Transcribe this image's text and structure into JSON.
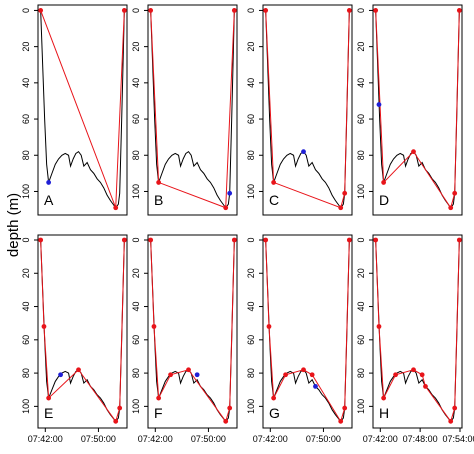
{
  "y_label": "depth (m)",
  "chart_data": [
    {
      "type": "line",
      "label": "A",
      "xlim": [
        40.9,
        54.3
      ],
      "ylim": [
        113,
        -3
      ],
      "yticks": [
        0,
        20,
        40,
        60,
        80,
        100
      ],
      "series": [
        {
          "color": "#000000",
          "x": [
            41.3,
            41.6,
            41.9,
            42.2,
            42.5,
            43.0,
            43.5,
            44.0,
            44.5,
            45.0,
            45.5,
            45.8,
            46.2,
            46.6,
            47.0,
            47.4,
            47.8,
            48.3,
            48.8,
            49.3,
            49.8,
            50.3,
            50.8,
            51.3,
            51.8,
            52.2,
            52.6,
            53.0,
            53.2,
            53.5,
            53.9
          ],
          "values": [
            0,
            30,
            60,
            85,
            95,
            90,
            85,
            82,
            80,
            79,
            80,
            86,
            82,
            79,
            78,
            80,
            86,
            84,
            88,
            90,
            93,
            95,
            98,
            102,
            105,
            107,
            109,
            107,
            101,
            60,
            0
          ]
        },
        {
          "color": "#e8141a",
          "x": [
            41.3,
            52.6,
            53.9
          ],
          "values": [
            0,
            109,
            0
          ]
        },
        {
          "color": "#1f1fd6",
          "x": [
            42.5
          ],
          "values": [
            95
          ]
        }
      ]
    },
    {
      "type": "line",
      "label": "B",
      "xlim": [
        40.9,
        54.3
      ],
      "ylim": [
        113,
        -3
      ],
      "yticks": [
        0,
        20,
        40,
        60,
        80,
        100
      ],
      "series": [
        {
          "color": "#000000",
          "x": [
            41.3,
            41.6,
            41.9,
            42.2,
            42.5,
            43.0,
            43.5,
            44.0,
            44.5,
            45.0,
            45.5,
            45.8,
            46.2,
            46.6,
            47.0,
            47.4,
            47.8,
            48.3,
            48.8,
            49.3,
            49.8,
            50.3,
            50.8,
            51.3,
            51.8,
            52.2,
            52.6,
            53.0,
            53.2,
            53.5,
            53.9
          ],
          "values": [
            0,
            30,
            60,
            85,
            95,
            90,
            85,
            82,
            80,
            79,
            80,
            86,
            82,
            79,
            78,
            80,
            86,
            84,
            88,
            90,
            93,
            95,
            98,
            102,
            105,
            107,
            109,
            107,
            101,
            60,
            0
          ]
        },
        {
          "color": "#e8141a",
          "x": [
            41.3,
            42.5,
            52.6,
            53.9
          ],
          "values": [
            0,
            95,
            109,
            0
          ]
        },
        {
          "color": "#1f1fd6",
          "x": [
            53.2
          ],
          "values": [
            101
          ]
        }
      ]
    },
    {
      "type": "line",
      "label": "C",
      "xlim": [
        40.9,
        54.3
      ],
      "ylim": [
        113,
        -3
      ],
      "yticks": [
        0,
        20,
        40,
        60,
        80,
        100
      ],
      "series": [
        {
          "color": "#000000",
          "x": [
            41.3,
            41.6,
            41.9,
            42.2,
            42.5,
            43.0,
            43.5,
            44.0,
            44.5,
            45.0,
            45.5,
            45.8,
            46.2,
            46.6,
            47.0,
            47.4,
            47.8,
            48.3,
            48.8,
            49.3,
            49.8,
            50.3,
            50.8,
            51.3,
            51.8,
            52.2,
            52.6,
            53.0,
            53.2,
            53.5,
            53.9
          ],
          "values": [
            0,
            30,
            60,
            85,
            95,
            90,
            85,
            82,
            80,
            79,
            80,
            86,
            82,
            79,
            78,
            80,
            86,
            84,
            88,
            90,
            93,
            95,
            98,
            102,
            105,
            107,
            109,
            107,
            101,
            60,
            0
          ]
        },
        {
          "color": "#e8141a",
          "x": [
            41.3,
            42.5,
            52.6,
            53.2,
            53.9
          ],
          "values": [
            0,
            95,
            109,
            101,
            0
          ]
        },
        {
          "color": "#1f1fd6",
          "x": [
            47.0
          ],
          "values": [
            78
          ]
        }
      ]
    },
    {
      "type": "line",
      "label": "D",
      "xlim": [
        40.9,
        54.3
      ],
      "ylim": [
        113,
        -3
      ],
      "yticks": [
        0,
        20,
        40,
        60,
        80,
        100
      ],
      "series": [
        {
          "color": "#000000",
          "x": [
            41.3,
            41.6,
            41.9,
            42.2,
            42.5,
            43.0,
            43.5,
            44.0,
            44.5,
            45.0,
            45.5,
            45.8,
            46.2,
            46.6,
            47.0,
            47.4,
            47.8,
            48.3,
            48.8,
            49.3,
            49.8,
            50.3,
            50.8,
            51.3,
            51.8,
            52.2,
            52.6,
            53.0,
            53.2,
            53.5,
            53.9
          ],
          "values": [
            0,
            30,
            60,
            85,
            95,
            90,
            85,
            82,
            80,
            79,
            80,
            86,
            82,
            79,
            78,
            80,
            86,
            84,
            88,
            90,
            93,
            95,
            98,
            102,
            105,
            107,
            109,
            107,
            101,
            60,
            0
          ]
        },
        {
          "color": "#e8141a",
          "x": [
            41.3,
            42.5,
            47.0,
            52.6,
            53.2,
            53.9
          ],
          "values": [
            0,
            95,
            78,
            109,
            101,
            0
          ]
        },
        {
          "color": "#1f1fd6",
          "x": [
            41.8
          ],
          "values": [
            52
          ]
        }
      ]
    },
    {
      "type": "line",
      "label": "E",
      "xlim": [
        40.9,
        54.3
      ],
      "ylim": [
        113,
        -3
      ],
      "yticks": [
        0,
        20,
        40,
        60,
        80,
        100
      ],
      "xticks": [
        {
          "value": 42,
          "label": "07:42:00"
        },
        {
          "value": 50,
          "label": "07:50:00"
        }
      ],
      "series": [
        {
          "color": "#000000",
          "x": [
            41.3,
            41.6,
            41.9,
            42.2,
            42.5,
            43.0,
            43.5,
            44.0,
            44.5,
            45.0,
            45.5,
            45.8,
            46.2,
            46.6,
            47.0,
            47.4,
            47.8,
            48.3,
            48.8,
            49.3,
            49.8,
            50.3,
            50.8,
            51.3,
            51.8,
            52.2,
            52.6,
            53.0,
            53.2,
            53.5,
            53.9
          ],
          "values": [
            0,
            30,
            60,
            85,
            95,
            90,
            85,
            82,
            80,
            79,
            80,
            86,
            82,
            79,
            78,
            80,
            86,
            84,
            88,
            90,
            93,
            95,
            98,
            102,
            105,
            107,
            109,
            107,
            101,
            60,
            0
          ]
        },
        {
          "color": "#e8141a",
          "x": [
            41.3,
            41.8,
            42.5,
            47.0,
            52.6,
            53.2,
            53.9
          ],
          "values": [
            0,
            52,
            95,
            78,
            109,
            101,
            0
          ]
        },
        {
          "color": "#1f1fd6",
          "x": [
            44.3
          ],
          "values": [
            81
          ]
        }
      ]
    },
    {
      "type": "line",
      "label": "F",
      "xlim": [
        40.9,
        54.3
      ],
      "ylim": [
        113,
        -3
      ],
      "yticks": [
        0,
        20,
        40,
        60,
        80,
        100
      ],
      "xticks": [
        {
          "value": 42,
          "label": "07:42:00"
        },
        {
          "value": 50,
          "label": "07:50:00"
        }
      ],
      "series": [
        {
          "color": "#000000",
          "x": [
            41.3,
            41.6,
            41.9,
            42.2,
            42.5,
            43.0,
            43.5,
            44.0,
            44.5,
            45.0,
            45.5,
            45.8,
            46.2,
            46.6,
            47.0,
            47.4,
            47.8,
            48.3,
            48.8,
            49.3,
            49.8,
            50.3,
            50.8,
            51.3,
            51.8,
            52.2,
            52.6,
            53.0,
            53.2,
            53.5,
            53.9
          ],
          "values": [
            0,
            30,
            60,
            85,
            95,
            90,
            85,
            82,
            80,
            79,
            80,
            86,
            82,
            79,
            78,
            80,
            86,
            84,
            88,
            90,
            93,
            95,
            98,
            102,
            105,
            107,
            109,
            107,
            101,
            60,
            0
          ]
        },
        {
          "color": "#e8141a",
          "x": [
            41.3,
            41.8,
            42.5,
            44.3,
            47.0,
            52.6,
            53.2,
            53.9
          ],
          "values": [
            0,
            52,
            95,
            81,
            78,
            109,
            101,
            0
          ]
        },
        {
          "color": "#1f1fd6",
          "x": [
            48.3
          ],
          "values": [
            81
          ]
        }
      ]
    },
    {
      "type": "line",
      "label": "G",
      "xlim": [
        40.9,
        54.3
      ],
      "ylim": [
        113,
        -3
      ],
      "yticks": [
        0,
        20,
        40,
        60,
        80,
        100
      ],
      "xticks": [
        {
          "value": 42,
          "label": "07:42:00"
        },
        {
          "value": 50,
          "label": "07:50:00"
        }
      ],
      "series": [
        {
          "color": "#000000",
          "x": [
            41.3,
            41.6,
            41.9,
            42.2,
            42.5,
            43.0,
            43.5,
            44.0,
            44.5,
            45.0,
            45.5,
            45.8,
            46.2,
            46.6,
            47.0,
            47.4,
            47.8,
            48.3,
            48.8,
            49.3,
            49.8,
            50.3,
            50.8,
            51.3,
            51.8,
            52.2,
            52.6,
            53.0,
            53.2,
            53.5,
            53.9
          ],
          "values": [
            0,
            30,
            60,
            85,
            95,
            90,
            85,
            82,
            80,
            79,
            80,
            86,
            82,
            79,
            78,
            80,
            86,
            84,
            88,
            90,
            93,
            95,
            98,
            102,
            105,
            107,
            109,
            107,
            101,
            60,
            0
          ]
        },
        {
          "color": "#e8141a",
          "x": [
            41.3,
            41.8,
            42.5,
            44.3,
            47.0,
            48.3,
            52.6,
            53.2,
            53.9
          ],
          "values": [
            0,
            52,
            95,
            81,
            78,
            81,
            109,
            101,
            0
          ]
        },
        {
          "color": "#1f1fd6",
          "x": [
            48.8
          ],
          "values": [
            88
          ]
        }
      ]
    },
    {
      "type": "line",
      "label": "H",
      "xlim": [
        40.9,
        54.3
      ],
      "ylim": [
        113,
        -3
      ],
      "yticks": [
        0,
        20,
        40,
        60,
        80,
        100
      ],
      "xticks": [
        {
          "value": 42,
          "label": "07:42:00"
        },
        {
          "value": 48,
          "label": "07:48:00"
        },
        {
          "value": 54,
          "label": "07:54:00"
        }
      ],
      "series": [
        {
          "color": "#000000",
          "x": [
            41.3,
            41.6,
            41.9,
            42.2,
            42.5,
            43.0,
            43.5,
            44.0,
            44.5,
            45.0,
            45.5,
            45.8,
            46.2,
            46.6,
            47.0,
            47.4,
            47.8,
            48.3,
            48.8,
            49.3,
            49.8,
            50.3,
            50.8,
            51.3,
            51.8,
            52.2,
            52.6,
            53.0,
            53.2,
            53.5,
            53.9
          ],
          "values": [
            0,
            30,
            60,
            85,
            95,
            90,
            85,
            82,
            80,
            79,
            80,
            86,
            82,
            79,
            78,
            80,
            86,
            84,
            88,
            90,
            93,
            95,
            98,
            102,
            105,
            107,
            109,
            107,
            101,
            60,
            0
          ]
        },
        {
          "color": "#e8141a",
          "x": [
            41.3,
            41.8,
            42.5,
            44.3,
            47.0,
            48.3,
            48.8,
            52.6,
            53.2,
            53.9
          ],
          "values": [
            0,
            52,
            95,
            81,
            78,
            81,
            88,
            109,
            101,
            0
          ]
        }
      ]
    }
  ]
}
